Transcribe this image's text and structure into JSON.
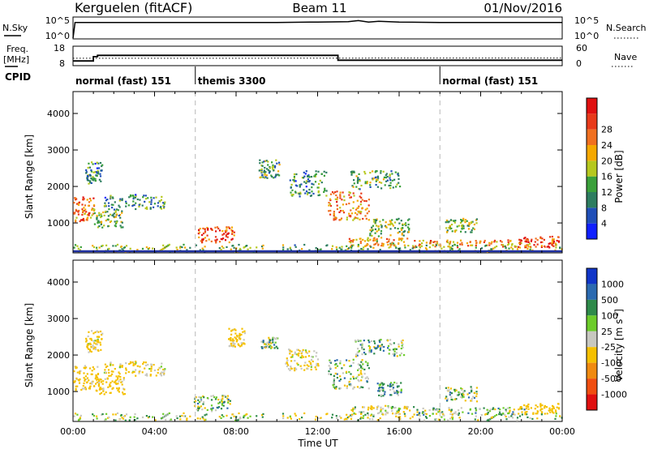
{
  "header": {
    "title_left": "Kerguelen (fitACF)",
    "title_center": "Beam 11",
    "title_right": "01/Nov/2016"
  },
  "left_labels": {
    "nsky": "N.Sky",
    "freq": "Freq.",
    "freq_unit": "[MHz]",
    "cpid": "CPID"
  },
  "right_labels": {
    "nsearch": "N.Search",
    "nave": "Nave"
  },
  "nsky_axis": {
    "top": "10^5",
    "bottom": "10^0"
  },
  "nsearch_axis": {
    "top": "10^5",
    "bottom": "10^0"
  },
  "freq_axis": {
    "top": "18",
    "bottom": "8"
  },
  "nave_axis": {
    "top": "60",
    "bottom": "0"
  },
  "cpid_segments": [
    {
      "label": "normal (fast) 151",
      "start_hour": 0
    },
    {
      "label": "themis 3300",
      "start_hour": 6
    },
    {
      "label": "normal (fast) 151",
      "start_hour": 18
    }
  ],
  "x_axis": {
    "ticks": [
      "00:00",
      "04:00",
      "08:00",
      "12:00",
      "16:00",
      "20:00",
      "00:00"
    ],
    "label": "Time UT",
    "range_hours": [
      0,
      24
    ]
  },
  "y_axis": {
    "label": "Slant Range [km]",
    "ticks": [
      "1000",
      "2000",
      "3000",
      "4000"
    ],
    "range": [
      180,
      4600
    ]
  },
  "power_bar": {
    "label": "Power [dB]",
    "ticks": [
      "4",
      "8",
      "12",
      "16",
      "20",
      "24",
      "28"
    ],
    "colors": [
      "#1020ff",
      "#1f4fb8",
      "#2d7d60",
      "#3aa03a",
      "#b6c81e",
      "#f5a800",
      "#f07020",
      "#e83a1a",
      "#e01010"
    ]
  },
  "velocity_bar": {
    "label": "Velocity [m s",
    "label_sup": "-1",
    "label_end": "]",
    "ticks": [
      "1000",
      "500",
      "100",
      "25",
      "-25",
      "-100",
      "-500",
      "-1000"
    ],
    "colors": [
      "#1035c8",
      "#2b6ab0",
      "#2e8a4a",
      "#6ccc2a",
      "#c8c8c0",
      "#f5c000",
      "#f08a10",
      "#f04e10",
      "#e01010"
    ]
  },
  "chart_data": [
    {
      "type": "line",
      "name": "N.Sky",
      "x": [
        0,
        0.1,
        2,
        4,
        6,
        8,
        10,
        12,
        13.5,
        14,
        14.5,
        15,
        16,
        18,
        20,
        22,
        24
      ],
      "y_log10": [
        0,
        4.2,
        4.2,
        4.2,
        4.2,
        4.2,
        4.2,
        4.3,
        4.4,
        4.7,
        4.3,
        4.5,
        4.3,
        4.2,
        4.2,
        4.2,
        4.2
      ]
    },
    {
      "type": "line",
      "name": "Freq.",
      "x": [
        0,
        1.0,
        1.0,
        1.2,
        1.2,
        13,
        13,
        24
      ],
      "y": [
        10.2,
        10.2,
        12.6,
        12.6,
        13.3,
        13.3,
        10.6,
        10.6
      ]
    },
    {
      "type": "line",
      "name": "Nave",
      "x": [
        0,
        6,
        18,
        24
      ],
      "y": [
        22,
        22,
        23,
        23
      ]
    },
    {
      "type": "heatmap",
      "name": "Power",
      "title": "Power [dB]",
      "xlabel": "Time UT",
      "ylabel": "Slant Range [km]",
      "xlim": [
        0,
        24
      ],
      "ylim": [
        180,
        4600
      ],
      "zlim": [
        0,
        32
      ],
      "blobs": [
        {
          "t": 0.5,
          "r": 1400,
          "dt": 0.5,
          "dr": 350,
          "v": 24
        },
        {
          "t": 1.0,
          "r": 2400,
          "dt": 0.4,
          "dr": 300,
          "v": 10
        },
        {
          "t": 1.7,
          "r": 1150,
          "dt": 0.7,
          "dr": 250,
          "v": 14
        },
        {
          "t": 3.0,
          "r": 1600,
          "dt": 1.5,
          "dr": 200,
          "v": 10
        },
        {
          "t": 7.0,
          "r": 700,
          "dt": 0.9,
          "dr": 220,
          "v": 26
        },
        {
          "t": 9.6,
          "r": 2500,
          "dt": 0.5,
          "dr": 250,
          "v": 12
        },
        {
          "t": 11.5,
          "r": 2100,
          "dt": 0.9,
          "dr": 350,
          "v": 10
        },
        {
          "t": 13.5,
          "r": 1500,
          "dt": 1.0,
          "dr": 400,
          "v": 22
        },
        {
          "t": 14.8,
          "r": 2200,
          "dt": 1.2,
          "dr": 250,
          "v": 12
        },
        {
          "t": 15.5,
          "r": 900,
          "dt": 1.0,
          "dr": 250,
          "v": 14
        },
        {
          "t": 15.0,
          "r": 500,
          "dt": 1.5,
          "dr": 120,
          "v": 20
        },
        {
          "t": 19.0,
          "r": 950,
          "dt": 0.8,
          "dr": 200,
          "v": 14
        },
        {
          "t": 19.5,
          "r": 450,
          "dt": 3.0,
          "dr": 100,
          "v": 22
        },
        {
          "t": 22.8,
          "r": 500,
          "dt": 1.0,
          "dr": 150,
          "v": 26
        },
        {
          "t": 12,
          "r": 330,
          "dt": 12,
          "dr": 100,
          "v": 14
        }
      ]
    },
    {
      "type": "heatmap",
      "name": "Velocity",
      "title": "Velocity [m s-1]",
      "xlabel": "Time UT",
      "ylabel": "Slant Range [km]",
      "xlim": [
        0,
        24
      ],
      "ylim": [
        180,
        4600
      ],
      "zlim": [
        -1000,
        1000
      ],
      "blobs": [
        {
          "t": 0.6,
          "r": 1400,
          "dt": 0.6,
          "dr": 350,
          "v": -200
        },
        {
          "t": 1.0,
          "r": 2400,
          "dt": 0.4,
          "dr": 300,
          "v": -150
        },
        {
          "t": 1.8,
          "r": 1200,
          "dt": 0.7,
          "dr": 250,
          "v": -200
        },
        {
          "t": 3.0,
          "r": 1650,
          "dt": 1.5,
          "dr": 200,
          "v": -150
        },
        {
          "t": 6.8,
          "r": 700,
          "dt": 0.9,
          "dr": 220,
          "v": 0
        },
        {
          "t": 8.0,
          "r": 2500,
          "dt": 0.4,
          "dr": 250,
          "v": -200
        },
        {
          "t": 9.6,
          "r": 2350,
          "dt": 0.4,
          "dr": 150,
          "v": 0
        },
        {
          "t": 11.2,
          "r": 1900,
          "dt": 0.8,
          "dr": 300,
          "v": -150
        },
        {
          "t": 13.5,
          "r": 1500,
          "dt": 1.0,
          "dr": 400,
          "v": 0
        },
        {
          "t": 15.0,
          "r": 2200,
          "dt": 1.2,
          "dr": 250,
          "v": 0
        },
        {
          "t": 15.5,
          "r": 1100,
          "dt": 0.6,
          "dr": 200,
          "v": 50
        },
        {
          "t": 15.2,
          "r": 500,
          "dt": 1.6,
          "dr": 130,
          "v": -100
        },
        {
          "t": 19.0,
          "r": 950,
          "dt": 0.8,
          "dr": 200,
          "v": 0
        },
        {
          "t": 19.5,
          "r": 480,
          "dt": 2.8,
          "dr": 100,
          "v": 0
        },
        {
          "t": 22.8,
          "r": 550,
          "dt": 1.0,
          "dr": 150,
          "v": -300
        },
        {
          "t": 12,
          "r": 330,
          "dt": 12,
          "dr": 100,
          "v": -50
        }
      ]
    }
  ]
}
